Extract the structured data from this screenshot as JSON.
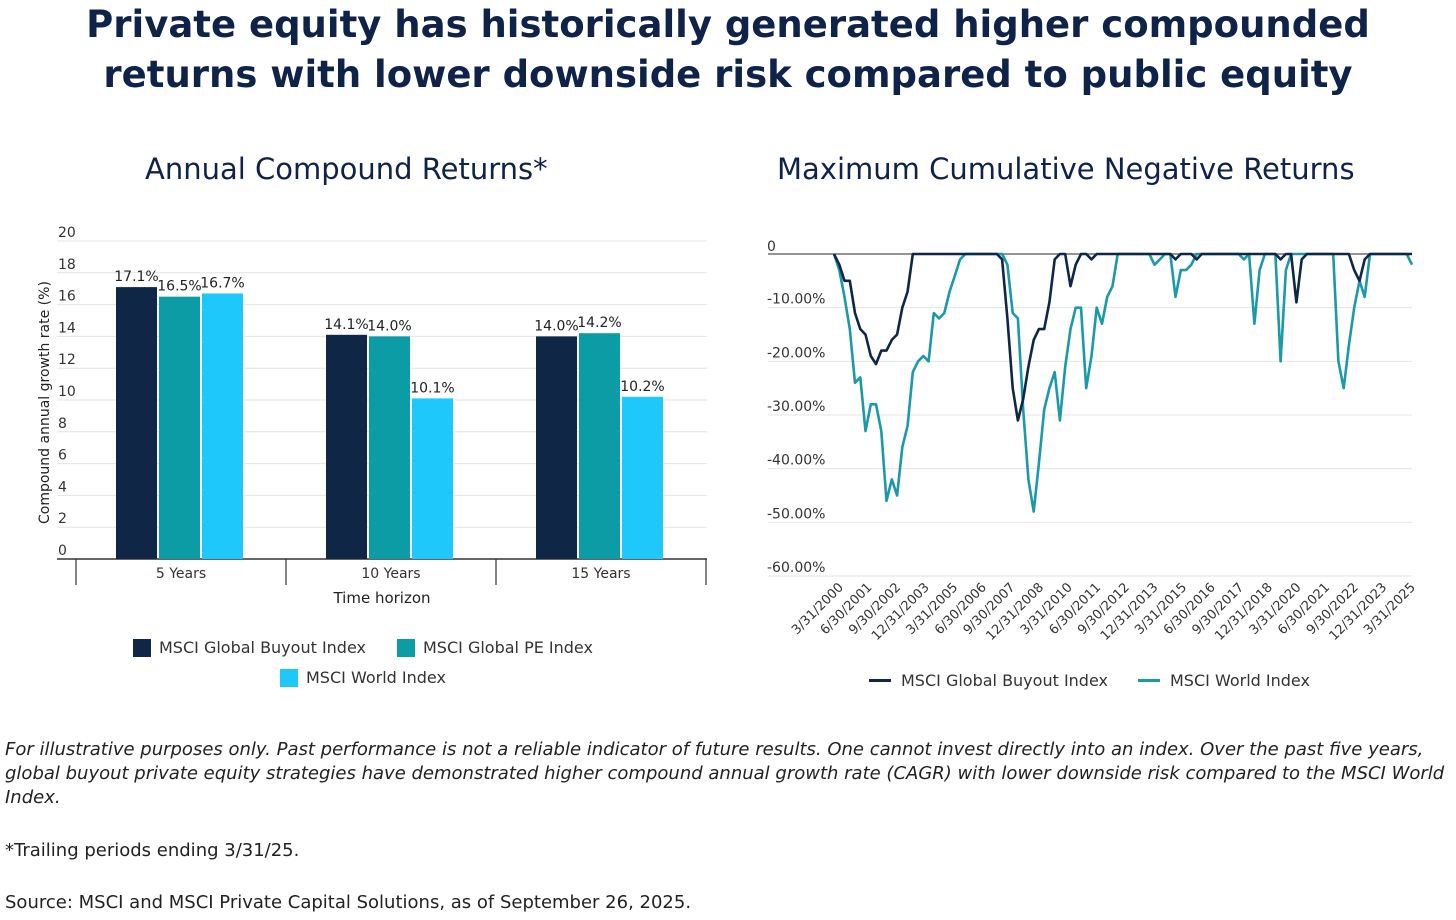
{
  "title": {
    "line1": "Private equity has historically generated higher compounded",
    "line2": "returns with lower downside risk compared to public equity"
  },
  "colors": {
    "buyout": "#0f2647",
    "pe": "#0c9ca6",
    "world": "#1ec8fb",
    "world_line": "#1a9aa8",
    "title": "#0f2247"
  },
  "chart_data": [
    {
      "type": "bar",
      "title": "Annual Compound Returns*",
      "xlabel": "Time horizon",
      "ylabel": "Compound annual growth rate (%)",
      "ylim": [
        0,
        20
      ],
      "yticks": [
        "0",
        "2",
        "4",
        "6",
        "8",
        "10",
        "12",
        "14",
        "16",
        "18",
        "20"
      ],
      "categories": [
        "5 Years",
        "10 Years",
        "15 Years"
      ],
      "series": [
        {
          "name": "MSCI Global Buyout Index",
          "values": [
            17.1,
            14.1,
            14.0
          ],
          "labels": [
            "17.1%",
            "14.1%",
            "14.0%"
          ]
        },
        {
          "name": "MSCI Global PE Index",
          "values": [
            16.5,
            14.0,
            14.2
          ],
          "labels": [
            "16.5%",
            "14.0%",
            "14.2%"
          ]
        },
        {
          "name": "MSCI World Index",
          "values": [
            16.7,
            10.1,
            10.2
          ],
          "labels": [
            "16.7%",
            "10.1%",
            "10.2%"
          ]
        }
      ],
      "legend": "bottom"
    },
    {
      "type": "line",
      "title": "Maximum Cumulative Negative Returns",
      "ylim": [
        -60,
        0
      ],
      "yticks": [
        "0",
        "-10.00%",
        "-20.00%",
        "-30.00%",
        "-40.00%",
        "-50.00%",
        "-60.00%"
      ],
      "x_labels": [
        "3/31/2000",
        "6/30/2001",
        "9/30/2002",
        "12/31/2003",
        "3/31/2005",
        "6/30/2006",
        "9/30/2007",
        "12/31/2008",
        "3/31/2010",
        "6/30/2011",
        "9/30/2012",
        "12/31/2013",
        "3/31/2015",
        "6/30/2016",
        "9/30/2017",
        "12/31/2018",
        "3/31/2020",
        "6/30/2021",
        "9/30/2022",
        "12/31/2023",
        "3/31/2025"
      ],
      "series": [
        {
          "name": "MSCI Global Buyout Index",
          "values": [
            0,
            -2,
            -5,
            -5,
            -11,
            -14,
            -15,
            -19,
            -20.5,
            -18,
            -18,
            -16,
            -15,
            -10,
            -7,
            0,
            0,
            0,
            0,
            0,
            0,
            0,
            0,
            0,
            0,
            0,
            0,
            0,
            0,
            0,
            0,
            0,
            -1,
            -12,
            -25,
            -31,
            -27,
            -21,
            -16,
            -14,
            -14,
            -9,
            -1,
            0,
            0,
            -6,
            -2,
            0,
            0,
            -1,
            0,
            0,
            0,
            0,
            0,
            0,
            0,
            0,
            0,
            0,
            0,
            0,
            0,
            0,
            0,
            -1,
            0,
            0,
            0,
            -1,
            0,
            0,
            0,
            0,
            0,
            0,
            0,
            0,
            0,
            0,
            0,
            0,
            0,
            0,
            0,
            -1,
            0,
            0,
            -9,
            -1,
            0,
            0,
            0,
            0,
            0,
            0,
            0,
            0,
            0,
            -3,
            -5,
            -1,
            0,
            0,
            0,
            0,
            0,
            0,
            0,
            0,
            0
          ]
        },
        {
          "name": "MSCI World Index",
          "values": [
            0,
            -3,
            -8,
            -14,
            -24,
            -23,
            -33,
            -28,
            -28,
            -33,
            -46,
            -42,
            -45,
            -36,
            -32,
            -22,
            -20,
            -19,
            -20,
            -11,
            -12,
            -11,
            -7,
            -4,
            -1,
            0,
            0,
            0,
            0,
            0,
            0,
            0,
            0,
            -2,
            -11,
            -12,
            -29,
            -42,
            -48,
            -39,
            -29,
            -25,
            -22,
            -31,
            -21,
            -14,
            -10,
            -10,
            -25,
            -19,
            -10,
            -13,
            -8,
            -6,
            0,
            0,
            0,
            0,
            0,
            0,
            0,
            -2,
            -1,
            0,
            0,
            -8,
            -3,
            -3,
            -2,
            0,
            0,
            0,
            0,
            0,
            0,
            0,
            0,
            0,
            -1,
            0,
            -13,
            -3,
            0,
            0,
            0,
            -20,
            -3,
            0,
            0,
            0,
            0,
            0,
            0,
            0,
            0,
            0,
            -20,
            -25,
            -17,
            -10,
            -5,
            -8,
            0,
            0,
            0,
            0,
            0,
            0,
            0,
            0,
            -2
          ]
        }
      ],
      "legend": "bottom"
    }
  ],
  "footnotes": {
    "disclaimer": "For illustrative purposes only.  Past performance is not a reliable indicator of future results. One cannot invest directly into an index. Over the past five years, global buyout private equity strategies have demonstrated higher compound annual growth rate (CAGR) with lower downside risk compared to the MSCI World Index.",
    "trailing": "*Trailing periods ending 3/31/25.",
    "source": "Source: MSCI and MSCI Private Capital Solutions, as of September 26, 2025."
  }
}
